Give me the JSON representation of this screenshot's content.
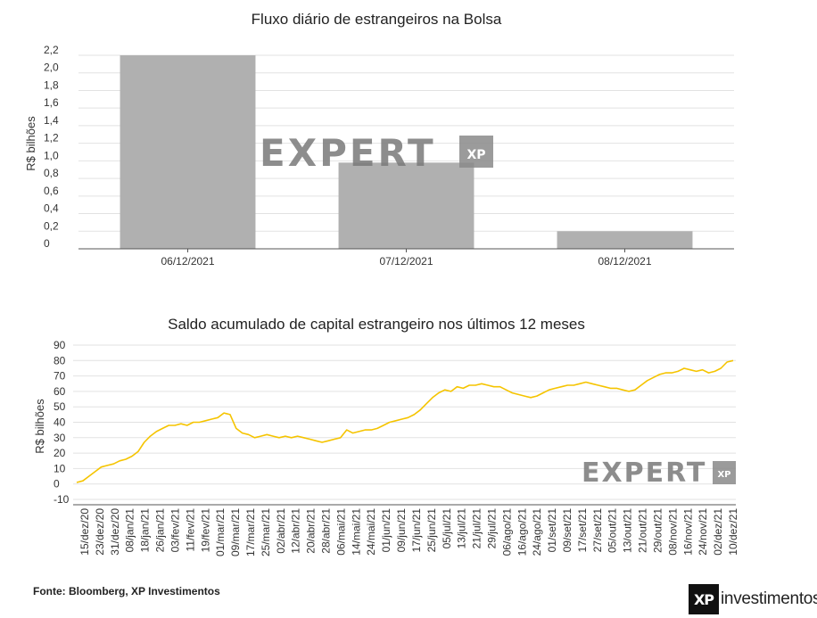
{
  "chart_data": [
    {
      "type": "bar",
      "title": "Fluxo diário de estrangeiros na Bolsa",
      "ylabel": "R$ bilhões",
      "ylim": [
        0,
        2.2
      ],
      "yticks": [
        "2,2",
        "2,0",
        "1,8",
        "1,6",
        "1,4",
        "1,2",
        "1,0",
        "0,8",
        "0,6",
        "0,4",
        "0,2",
        "0"
      ],
      "categories": [
        "06/12/2021",
        "07/12/2021",
        "08/12/2021"
      ],
      "values": [
        2.2,
        0.98,
        0.2
      ],
      "bar_color": "#b0b0b0",
      "grid": true
    },
    {
      "type": "line",
      "title": "Saldo acumulado de capital estrangeiro nos últimos 12 meses",
      "ylabel": "R$ bilhões",
      "ylim": [
        -10,
        90
      ],
      "yticks": [
        "90",
        "80",
        "70",
        "60",
        "50",
        "40",
        "30",
        "20",
        "10",
        "0",
        "-10"
      ],
      "xticks": [
        "15/dez/20",
        "23/dez/20",
        "31/dez/20",
        "08/jan/21",
        "18/jan/21",
        "26/jan/21",
        "03/fev/21",
        "11/fev/21",
        "19/fev/21",
        "01/mar/21",
        "09/mar/21",
        "17/mar/21",
        "25/mar/21",
        "02/abr/21",
        "12/abr/21",
        "20/abr/21",
        "28/abr/21",
        "06/mai/21",
        "14/mai/21",
        "24/mai/21",
        "01/jun/21",
        "09/jun/21",
        "17/jun/21",
        "25/jun/21",
        "05/jul/21",
        "13/jul/21",
        "21/jul/21",
        "29/jul/21",
        "06/ago/21",
        "16/ago/21",
        "24/ago/21",
        "01/set/21",
        "09/set/21",
        "17/set/21",
        "27/set/21",
        "05/out/21",
        "13/out/21",
        "21/out/21",
        "29/out/21",
        "08/nov/21",
        "16/nov/21",
        "24/nov/21",
        "02/dez/21",
        "10/dez/21"
      ],
      "values": [
        1,
        2,
        5,
        8,
        11,
        12,
        13,
        15,
        16,
        18,
        21,
        27,
        31,
        34,
        36,
        38,
        38,
        39,
        38,
        40,
        40,
        41,
        42,
        43,
        46,
        45,
        36,
        33,
        32,
        30,
        31,
        32,
        31,
        30,
        31,
        30,
        31,
        30,
        29,
        28,
        27,
        28,
        29,
        30,
        35,
        33,
        34,
        35,
        35,
        36,
        38,
        40,
        41,
        42,
        43,
        45,
        48,
        52,
        56,
        59,
        61,
        60,
        63,
        62,
        64,
        64,
        65,
        64,
        63,
        63,
        61,
        59,
        58,
        57,
        56,
        57,
        59,
        61,
        62,
        63,
        64,
        64,
        65,
        66,
        65,
        64,
        63,
        62,
        62,
        61,
        60,
        61,
        64,
        67,
        69,
        71,
        72,
        72,
        73,
        75,
        74,
        73,
        74,
        72,
        73,
        75,
        79,
        80
      ],
      "line_color": "#f5c400",
      "grid": true
    }
  ],
  "watermark": {
    "text": "EXPERT",
    "badge": "XP"
  },
  "footer": {
    "source": "Fonte: Bloomberg, XP Investimentos",
    "logo_mark": "XP",
    "logo_text": "investimentos"
  }
}
